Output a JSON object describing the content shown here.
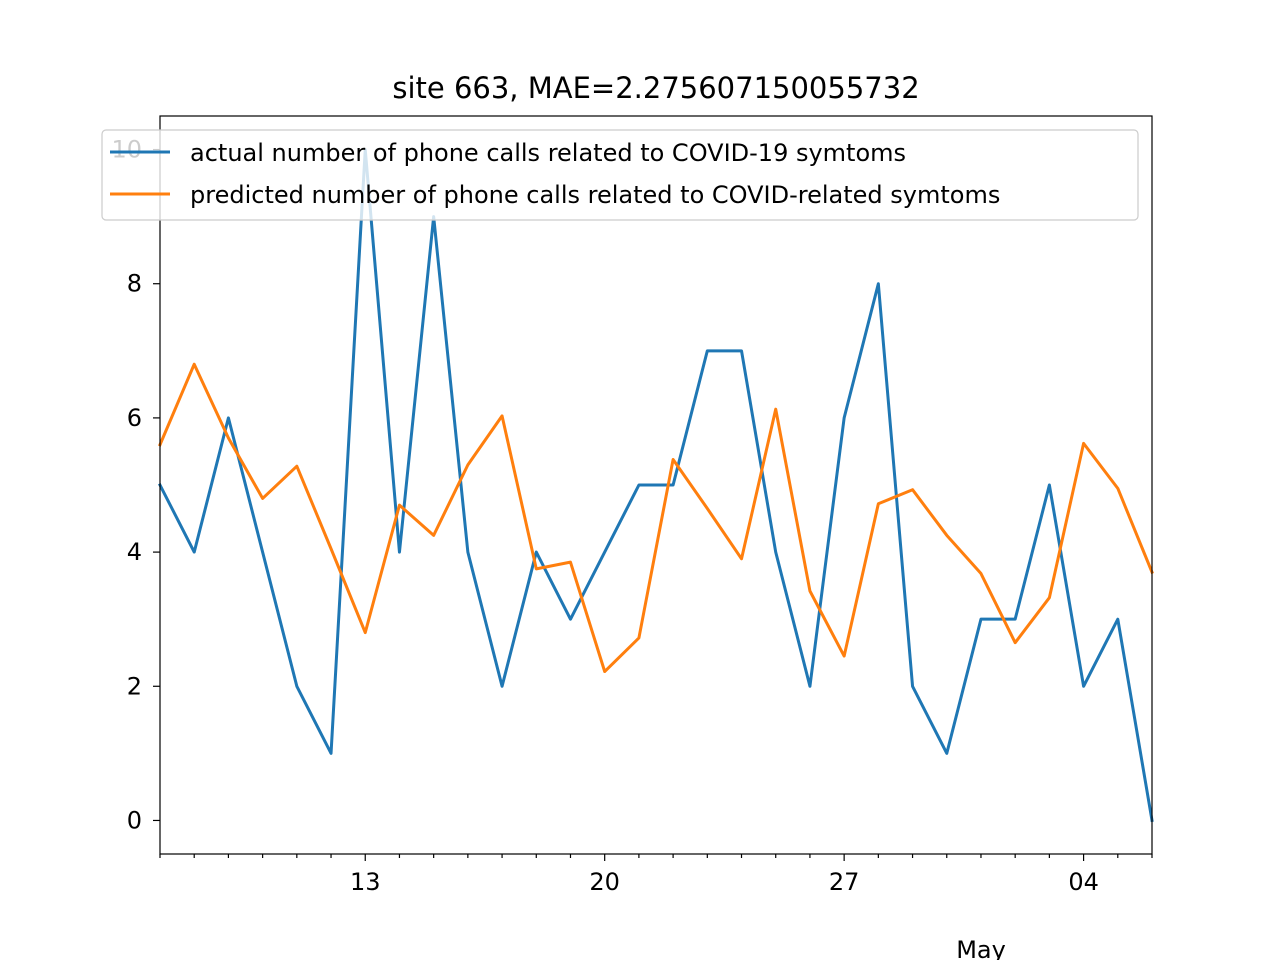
{
  "chart_data": {
    "type": "line",
    "title": "site 663, MAE=2.275607150055732",
    "xlabel": "",
    "ylabel": "",
    "x_axis_type": "date",
    "x": [
      "2020-04-07",
      "2020-04-08",
      "2020-04-09",
      "2020-04-10",
      "2020-04-11",
      "2020-04-12",
      "2020-04-13",
      "2020-04-14",
      "2020-04-15",
      "2020-04-16",
      "2020-04-17",
      "2020-04-18",
      "2020-04-19",
      "2020-04-20",
      "2020-04-21",
      "2020-04-22",
      "2020-04-23",
      "2020-04-24",
      "2020-04-25",
      "2020-04-26",
      "2020-04-27",
      "2020-04-28",
      "2020-04-29",
      "2020-04-30",
      "2020-05-01",
      "2020-05-02",
      "2020-05-03",
      "2020-05-04",
      "2020-05-05",
      "2020-05-06"
    ],
    "xlim": [
      "2020-04-07",
      "2020-05-06"
    ],
    "ylim": [
      -0.5,
      10.5
    ],
    "y_ticks": [
      0,
      2,
      4,
      6,
      8,
      10
    ],
    "x_ticks": [
      {
        "date": "2020-04-13",
        "label": "13"
      },
      {
        "date": "2020-04-20",
        "label": "20"
      },
      {
        "date": "2020-04-27",
        "label": "27"
      },
      {
        "date": "2020-05-04",
        "label": "04"
      }
    ],
    "x_minor_ticks": [
      "2020-04-07",
      "2020-04-08",
      "2020-04-09",
      "2020-04-10",
      "2020-04-11",
      "2020-04-12",
      "2020-04-14",
      "2020-04-15",
      "2020-04-16",
      "2020-04-17",
      "2020-04-18",
      "2020-04-19",
      "2020-04-21",
      "2020-04-22",
      "2020-04-23",
      "2020-04-24",
      "2020-04-25",
      "2020-04-26",
      "2020-04-28",
      "2020-04-29",
      "2020-04-30",
      "2020-05-01",
      "2020-05-02",
      "2020-05-03",
      "2020-05-05",
      "2020-05-06"
    ],
    "x_secondary_label": "May",
    "grid": false,
    "legend_position": "top",
    "series": [
      {
        "name": "actual number of phone calls related to COVID-19 symtoms",
        "color": "#1f77b4",
        "values": [
          5,
          4,
          6,
          4,
          2,
          1,
          10,
          4,
          9,
          4,
          2,
          4,
          3,
          4,
          5,
          5,
          7,
          7,
          4,
          2,
          6,
          8,
          2,
          1,
          3,
          3,
          5,
          2,
          3,
          0
        ]
      },
      {
        "name": "predicted number of phone calls related to COVID-related symtoms",
        "color": "#ff7f0e",
        "values": [
          5.6,
          6.8,
          5.7,
          4.8,
          5.28,
          4.05,
          2.8,
          4.7,
          4.25,
          5.3,
          6.03,
          3.75,
          3.85,
          2.22,
          2.72,
          5.38,
          4.65,
          3.9,
          6.13,
          3.42,
          2.45,
          4.72,
          4.93,
          4.25,
          3.68,
          2.65,
          3.32,
          5.62,
          4.95,
          3.7
        ]
      }
    ]
  }
}
